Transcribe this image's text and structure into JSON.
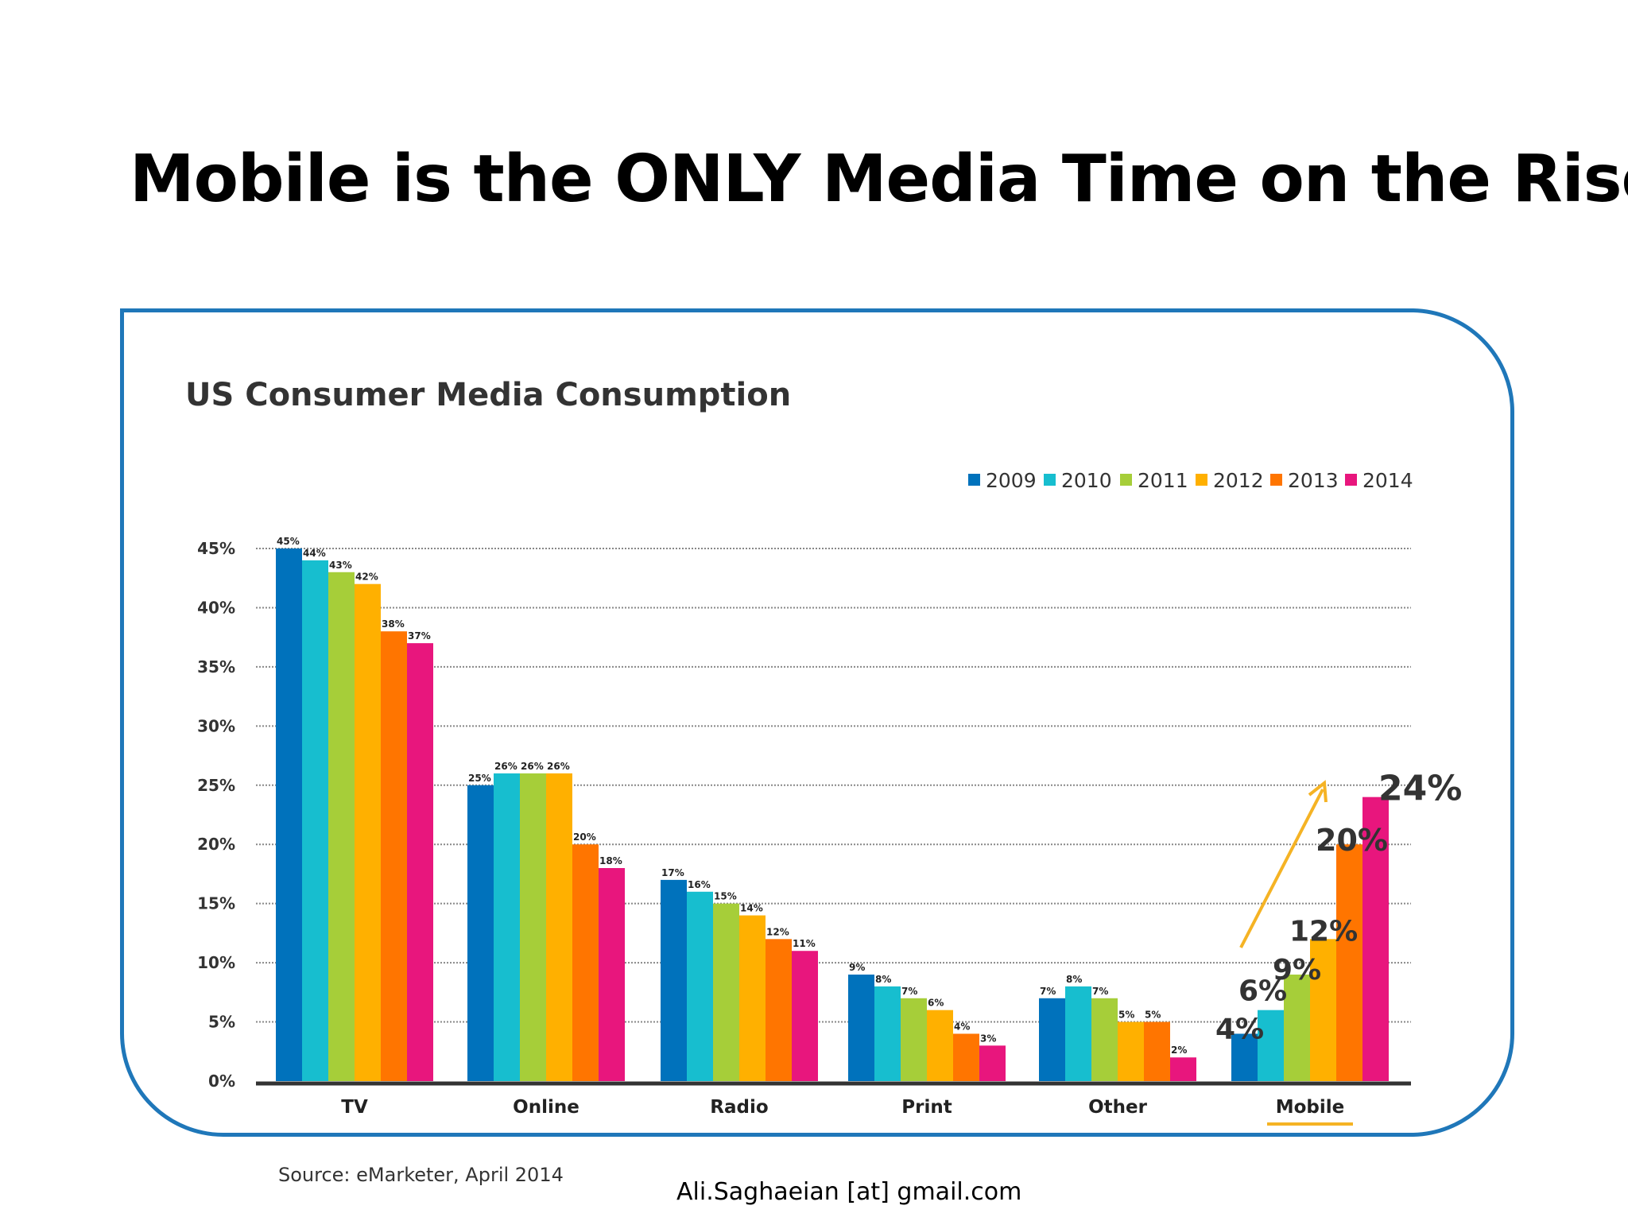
{
  "slide": {
    "title": "Mobile is the ONLY Media Time on the Rise",
    "source": "Source: eMarketer, April 2014",
    "contact": "Ali.Saghaeian [at] gmail.com"
  },
  "colors": {
    "frame": "#1f77b9",
    "arrow": "#f5b324",
    "highlight_underline": "#f5b324",
    "series": [
      "#0072bc",
      "#17becf",
      "#a6ce39",
      "#ffb000",
      "#ff7500",
      "#e8167d"
    ]
  },
  "chart_data": {
    "type": "bar",
    "title": "US Consumer Media Consumption",
    "xlabel": "",
    "ylabel": "",
    "ylim": [
      0,
      45
    ],
    "yticks": [
      "0%",
      "5%",
      "10%",
      "15%",
      "20%",
      "25%",
      "30%",
      "35%",
      "40%",
      "45%"
    ],
    "grid": true,
    "legend_position": "top-right",
    "categories": [
      "TV",
      "Online",
      "Radio",
      "Print",
      "Other",
      "Mobile"
    ],
    "highlight_category": "Mobile",
    "series": [
      {
        "name": "2009",
        "values": [
          45,
          25,
          17,
          9,
          7,
          4
        ]
      },
      {
        "name": "2010",
        "values": [
          44,
          26,
          16,
          8,
          8,
          6
        ]
      },
      {
        "name": "2011",
        "values": [
          43,
          26,
          15,
          7,
          7,
          9
        ]
      },
      {
        "name": "2012",
        "values": [
          42,
          26,
          14,
          6,
          5,
          12
        ]
      },
      {
        "name": "2013",
        "values": [
          38,
          20,
          12,
          4,
          5,
          20
        ]
      },
      {
        "name": "2014",
        "values": [
          37,
          18,
          11,
          3,
          2,
          24
        ]
      }
    ],
    "value_labels": [
      [
        "45%",
        "44%",
        "43%",
        "42%",
        "38%",
        "37%"
      ],
      [
        "25%",
        "26%",
        "26%",
        "26%",
        "20%",
        "18%"
      ],
      [
        "17%",
        "16%",
        "15%",
        "14%",
        "12%",
        "11%"
      ],
      [
        "9%",
        "8%",
        "7%",
        "6%",
        "4%",
        "3%"
      ],
      [
        "7%",
        "8%",
        "7%",
        "5%",
        "5%",
        "2%"
      ],
      [
        "4%",
        "6%",
        "9%",
        "12%",
        "20%",
        "24%"
      ]
    ]
  }
}
